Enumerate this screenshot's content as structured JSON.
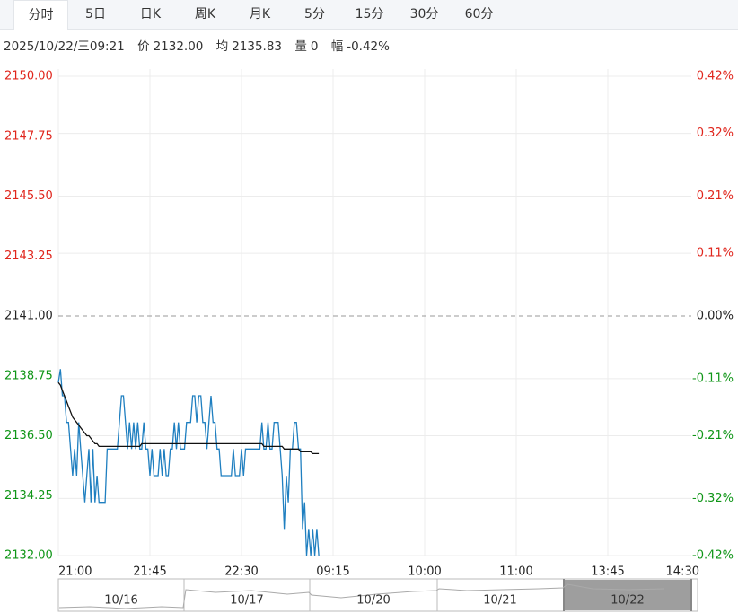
{
  "tabs": {
    "items": [
      "分时",
      "5日",
      "日K",
      "周K",
      "月K",
      "5分",
      "15分",
      "30分",
      "60分"
    ],
    "selected": 0
  },
  "info": {
    "datetime": "2025/10/22/三09:21",
    "price_label": "价",
    "price": "2132.00",
    "avg_label": "均",
    "avg": "2135.83",
    "volume_label": "量",
    "volume": "0",
    "change_label": "幅",
    "change": "-0.42%"
  },
  "chart_data": {
    "type": "line",
    "x": [
      0,
      1,
      2,
      3,
      4,
      5,
      6,
      7,
      8,
      9,
      10,
      11,
      12,
      13,
      14,
      15,
      16,
      17,
      18,
      19,
      20,
      21,
      22,
      23,
      24,
      25,
      26,
      27,
      28,
      29,
      30,
      31,
      32,
      33,
      34,
      35,
      36,
      37,
      38,
      39,
      40,
      41,
      42,
      43,
      44,
      45,
      46,
      47,
      48,
      49,
      50,
      51,
      52,
      53,
      54,
      55,
      56,
      57,
      58,
      59,
      60,
      61,
      62,
      63,
      64,
      65,
      66,
      67,
      68,
      69,
      70,
      71,
      72,
      73,
      74,
      75,
      76,
      77,
      78,
      79,
      80,
      81,
      82,
      83,
      84,
      85,
      86,
      87,
      88,
      89,
      90,
      91,
      92,
      93,
      94,
      95,
      96,
      97,
      98,
      99,
      100,
      101,
      102,
      103,
      104,
      105,
      106,
      107,
      108,
      109,
      110,
      111,
      112,
      113,
      114,
      115,
      116,
      117,
      118,
      119,
      120,
      121,
      122,
      123,
      124,
      125,
      126,
      127,
      128
    ],
    "series": [
      {
        "name": "价",
        "color": "#1f7fc0",
        "values": [
          2138.5,
          2139,
          2138,
          2138,
          2137,
          2137,
          2136,
          2135,
          2136,
          2135,
          2137,
          2136,
          2135,
          2134,
          2135,
          2136,
          2134,
          2136,
          2134,
          2135,
          2134,
          2134,
          2134,
          2134,
          2136,
          2136,
          2136,
          2136,
          2136,
          2136,
          2137,
          2138,
          2138,
          2137,
          2136,
          2137,
          2136,
          2137,
          2136,
          2137,
          2136,
          2136,
          2137,
          2136,
          2136,
          2135,
          2136,
          2135,
          2135,
          2135,
          2136,
          2135,
          2136,
          2135,
          2135,
          2136,
          2136,
          2137,
          2136,
          2137,
          2136,
          2136,
          2136,
          2137,
          2137,
          2137,
          2138,
          2138,
          2137,
          2138,
          2138,
          2137,
          2137,
          2136,
          2137,
          2138,
          2137,
          2137,
          2136,
          2136,
          2135,
          2135,
          2135,
          2135,
          2135,
          2135,
          2136,
          2135,
          2135,
          2135,
          2136,
          2135,
          2136,
          2136,
          2136,
          2136,
          2136,
          2136,
          2136,
          2136,
          2137,
          2136,
          2136,
          2137,
          2136,
          2136,
          2137,
          2137,
          2137,
          2136,
          2135,
          2133,
          2135,
          2134,
          2136,
          2136,
          2137,
          2137,
          2136,
          2136,
          2133,
          2134,
          2132,
          2133,
          2132,
          2133,
          2132,
          2133,
          2132
        ]
      },
      {
        "name": "均",
        "color": "#111111",
        "values": [
          2138.5,
          2138.4,
          2138.2,
          2138.0,
          2137.8,
          2137.6,
          2137.4,
          2137.2,
          2137.1,
          2137.0,
          2136.9,
          2136.8,
          2136.7,
          2136.6,
          2136.5,
          2136.5,
          2136.4,
          2136.3,
          2136.2,
          2136.2,
          2136.1,
          2136.1,
          2136.1,
          2136.1,
          2136.1,
          2136.1,
          2136.1,
          2136.1,
          2136.1,
          2136.1,
          2136.1,
          2136.1,
          2136.1,
          2136.1,
          2136.1,
          2136.1,
          2136.1,
          2136.1,
          2136.1,
          2136.1,
          2136.1,
          2136.2,
          2136.2,
          2136.2,
          2136.2,
          2136.2,
          2136.2,
          2136.2,
          2136.2,
          2136.2,
          2136.2,
          2136.2,
          2136.2,
          2136.2,
          2136.2,
          2136.2,
          2136.2,
          2136.2,
          2136.2,
          2136.2,
          2136.2,
          2136.2,
          2136.2,
          2136.2,
          2136.2,
          2136.2,
          2136.2,
          2136.2,
          2136.2,
          2136.2,
          2136.2,
          2136.2,
          2136.2,
          2136.2,
          2136.2,
          2136.2,
          2136.2,
          2136.2,
          2136.2,
          2136.2,
          2136.2,
          2136.2,
          2136.2,
          2136.2,
          2136.2,
          2136.2,
          2136.2,
          2136.2,
          2136.2,
          2136.2,
          2136.2,
          2136.2,
          2136.2,
          2136.2,
          2136.2,
          2136.2,
          2136.2,
          2136.2,
          2136.2,
          2136.2,
          2136.2,
          2136.1,
          2136.1,
          2136.1,
          2136.1,
          2136.1,
          2136.1,
          2136.1,
          2136.1,
          2136.1,
          2136.1,
          2136.0,
          2136.0,
          2136.0,
          2136.0,
          2136.0,
          2136.0,
          2136.0,
          2136.0,
          2135.9,
          2135.9,
          2135.9,
          2135.9,
          2135.9,
          2135.9,
          2135.83,
          2135.83,
          2135.83,
          2135.83
        ]
      }
    ],
    "xlim": [
      0,
      315
    ],
    "xticks": [
      {
        "value": 0,
        "label": "21:00"
      },
      {
        "value": 45,
        "label": "21:45"
      },
      {
        "value": 90,
        "label": "22:30"
      },
      {
        "value": 135,
        "label": "09:15"
      },
      {
        "value": 180,
        "label": "10:00"
      },
      {
        "value": 225,
        "label": "11:00"
      },
      {
        "value": 270,
        "label": "13:45"
      },
      {
        "value": 315,
        "label": "14:30"
      }
    ],
    "ylim": [
      2132,
      2150
    ],
    "yticks": [
      {
        "value": 2150,
        "label": "2150.00"
      },
      {
        "value": 2147.75,
        "label": "2147.75"
      },
      {
        "value": 2145.5,
        "label": "2145.50"
      },
      {
        "value": 2143.25,
        "label": "2143.25"
      },
      {
        "value": 2141,
        "label": "2141.00"
      },
      {
        "value": 2138.75,
        "label": "2138.75"
      },
      {
        "value": 2136.5,
        "label": "2136.50"
      },
      {
        "value": 2134.25,
        "label": "2134.25"
      },
      {
        "value": 2132,
        "label": "2132.00"
      }
    ],
    "y2lim": [
      -0.42,
      0.42
    ],
    "y2ticks": [
      {
        "value": 0.42,
        "label": "0.42%"
      },
      {
        "value": 0.32,
        "label": "0.32%"
      },
      {
        "value": 0.21,
        "label": "0.21%"
      },
      {
        "value": 0.11,
        "label": "0.11%"
      },
      {
        "value": 0,
        "label": "0.00%"
      },
      {
        "value": -0.11,
        "label": "-0.11%"
      },
      {
        "value": -0.21,
        "label": "-0.21%"
      },
      {
        "value": -0.32,
        "label": "-0.32%"
      },
      {
        "value": -0.42,
        "label": "-0.42%"
      }
    ],
    "up_color": "#e0261d",
    "down_color": "#109618",
    "flat_color": "#222222",
    "grid": true
  },
  "navigator": {
    "labels": [
      "10/16",
      "10/17",
      "10/20",
      "10/21",
      "10/22"
    ]
  }
}
